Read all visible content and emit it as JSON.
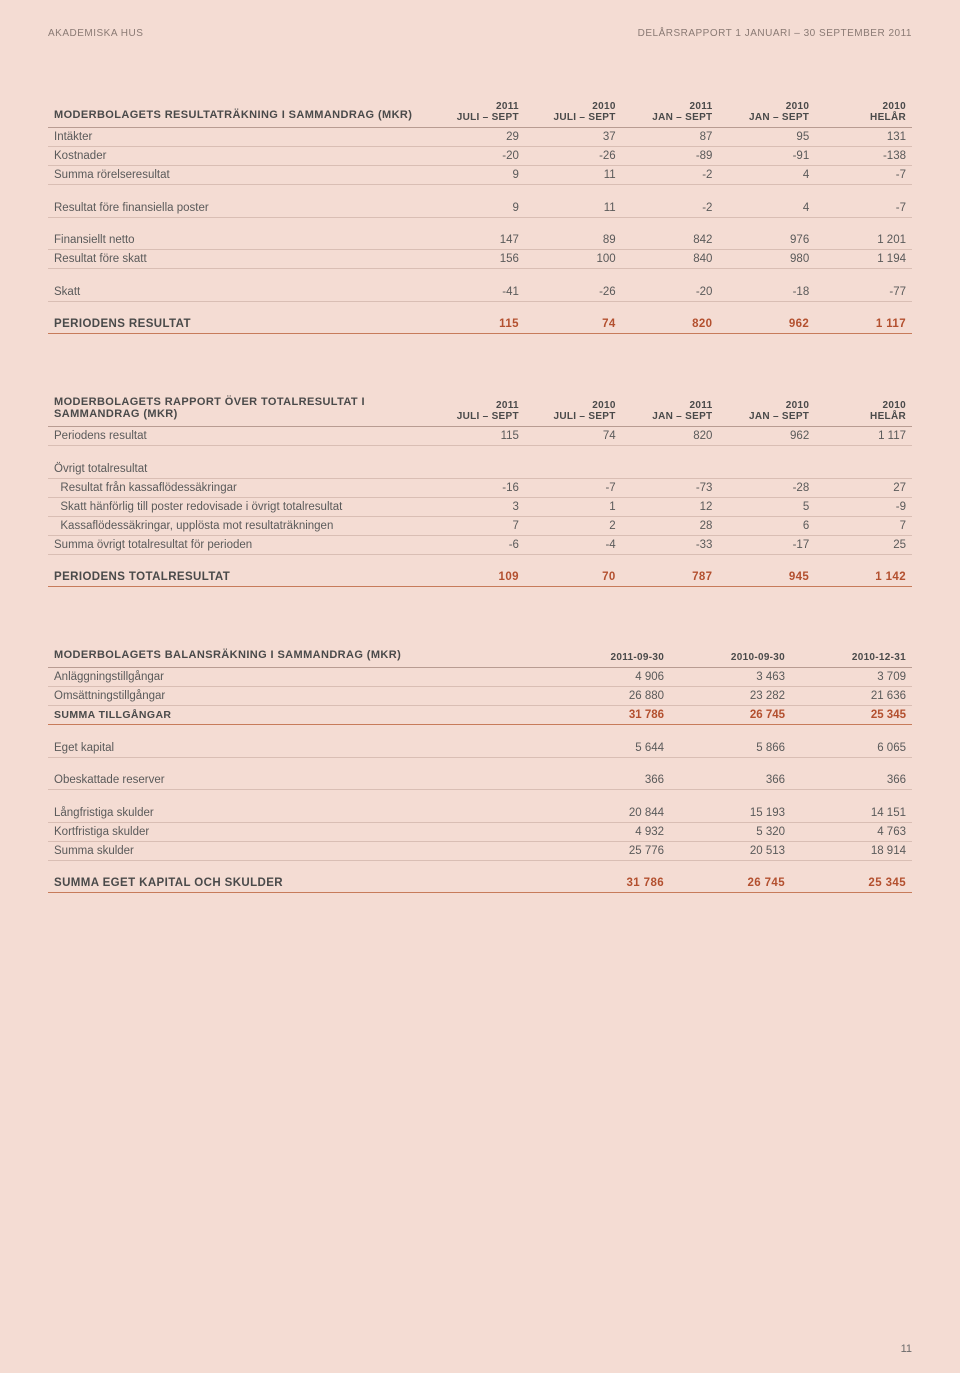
{
  "header": {
    "left": "AKADEMISKA HUS",
    "right": "DELÅRSRAPPORT 1 JANUARI – 30 SEPTEMBER 2011"
  },
  "tables": {
    "t1": {
      "title": "MODERBOLAGETS RESULTATRÄKNING I SAMMANDRAG (MKR)",
      "cols": [
        {
          "l1": "2011",
          "l2": "JULI – SEPT"
        },
        {
          "l1": "2010",
          "l2": "JULI – SEPT"
        },
        {
          "l1": "2011",
          "l2": "JAN – SEPT"
        },
        {
          "l1": "2010",
          "l2": "JAN – SEPT"
        },
        {
          "l1": "2010",
          "l2": "HELÅR"
        }
      ],
      "rows": [
        {
          "label": "Intäkter",
          "v": [
            "29",
            "37",
            "87",
            "95",
            "131"
          ]
        },
        {
          "label": "Kostnader",
          "v": [
            "-20",
            "-26",
            "-89",
            "-91",
            "-138"
          ]
        },
        {
          "label": "Summa rörelseresultat",
          "v": [
            "9",
            "11",
            "-2",
            "4",
            "-7"
          ]
        },
        {
          "spacer": true
        },
        {
          "label": "Resultat före finansiella poster",
          "v": [
            "9",
            "11",
            "-2",
            "4",
            "-7"
          ]
        },
        {
          "spacer": true
        },
        {
          "label": "Finansiellt netto",
          "v": [
            "147",
            "89",
            "842",
            "976",
            "1 201"
          ]
        },
        {
          "label": "Resultat före skatt",
          "v": [
            "156",
            "100",
            "840",
            "980",
            "1 194"
          ]
        },
        {
          "spacer": true
        },
        {
          "label": "Skatt",
          "v": [
            "-41",
            "-26",
            "-20",
            "-18",
            "-77"
          ]
        },
        {
          "spacer": true
        },
        {
          "label": "PERIODENS RESULTAT",
          "v": [
            "115",
            "74",
            "820",
            "962",
            "1 117"
          ],
          "total": true
        }
      ]
    },
    "t2": {
      "title": "MODERBOLAGETS RAPPORT ÖVER TOTALRESULTAT I SAMMANDRAG (MKR)",
      "cols": [
        {
          "l1": "2011",
          "l2": "JULI – SEPT"
        },
        {
          "l1": "2010",
          "l2": "JULI – SEPT"
        },
        {
          "l1": "2011",
          "l2": "JAN – SEPT"
        },
        {
          "l1": "2010",
          "l2": "JAN – SEPT"
        },
        {
          "l1": "2010",
          "l2": "HELÅR"
        }
      ],
      "rows": [
        {
          "label": "Periodens resultat",
          "v": [
            "115",
            "74",
            "820",
            "962",
            "1 117"
          ]
        },
        {
          "spacer": true
        },
        {
          "label": "Övrigt totalresultat",
          "section": true
        },
        {
          "label": "  Resultat från kassaflödessäkringar",
          "v": [
            "-16",
            "-7",
            "-73",
            "-28",
            "27"
          ]
        },
        {
          "label": "  Skatt hänförlig till poster redovisade i övrigt totalresultat",
          "v": [
            "3",
            "1",
            "12",
            "5",
            "-9"
          ]
        },
        {
          "label": "  Kassaflödessäkringar, upplösta mot resultaträkningen",
          "v": [
            "7",
            "2",
            "28",
            "6",
            "7"
          ]
        },
        {
          "label": "Summa övrigt totalresultat för perioden",
          "v": [
            "-6",
            "-4",
            "-33",
            "-17",
            "25"
          ]
        },
        {
          "spacer": true
        },
        {
          "label": "PERIODENS TOTALRESULTAT",
          "v": [
            "109",
            "70",
            "787",
            "945",
            "1 142"
          ],
          "total": true
        }
      ]
    },
    "t3": {
      "title": "MODERBOLAGETS BALANSRÄKNING I SAMMANDRAG (MKR)",
      "cols": [
        {
          "l1": "",
          "l2": "2011-09-30"
        },
        {
          "l1": "",
          "l2": "2010-09-30"
        },
        {
          "l1": "",
          "l2": "2010-12-31"
        }
      ],
      "rows": [
        {
          "label": "Anläggningstillgångar",
          "v": [
            "4 906",
            "3 463",
            "3 709"
          ]
        },
        {
          "label": "Omsättningstillgångar",
          "v": [
            "26 880",
            "23 282",
            "21 636"
          ]
        },
        {
          "label": "SUMMA TILLGÅNGAR",
          "v": [
            "31 786",
            "26 745",
            "25 345"
          ],
          "subtotal": true
        },
        {
          "spacer": true
        },
        {
          "label": "Eget kapital",
          "v": [
            "5 644",
            "5 866",
            "6 065"
          ]
        },
        {
          "spacer": true
        },
        {
          "label": "Obeskattade reserver",
          "v": [
            "366",
            "366",
            "366"
          ]
        },
        {
          "spacer": true
        },
        {
          "label": "Långfristiga skulder",
          "v": [
            "20 844",
            "15 193",
            "14 151"
          ]
        },
        {
          "label": "Kortfristiga skulder",
          "v": [
            "4 932",
            "5 320",
            "4 763"
          ]
        },
        {
          "label": "Summa skulder",
          "v": [
            "25 776",
            "20 513",
            "18 914"
          ]
        },
        {
          "spacer": true
        },
        {
          "label": "SUMMA EGET KAPITAL OCH SKULDER",
          "v": [
            "31 786",
            "26 745",
            "25 345"
          ],
          "total": true
        }
      ]
    }
  },
  "page_number": "11"
}
